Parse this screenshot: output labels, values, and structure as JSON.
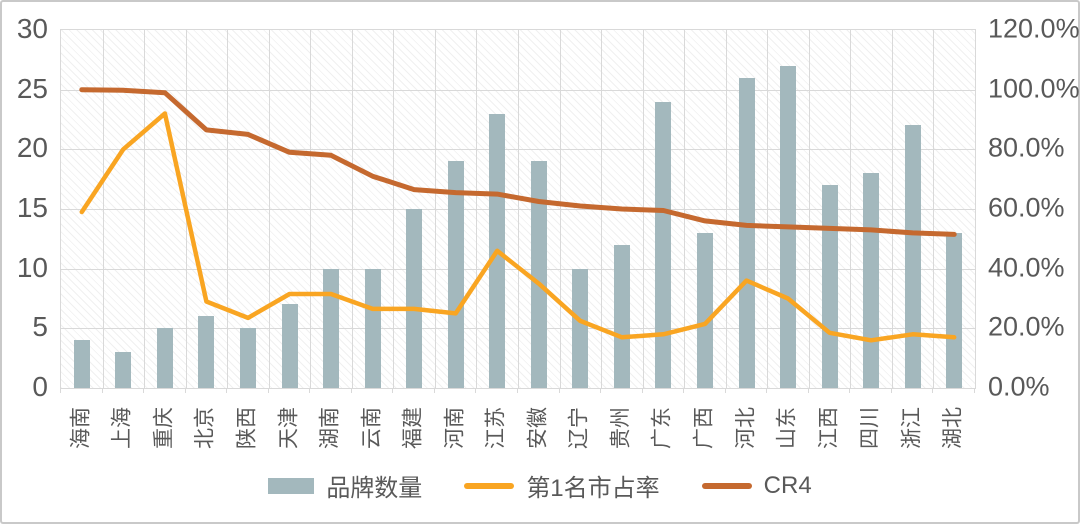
{
  "chart_data": {
    "type": "bar",
    "subtype": "combo-bar-line-dual-axis",
    "categories": [
      "海南",
      "上海",
      "重庆",
      "北京",
      "陕西",
      "天津",
      "湖南",
      "云南",
      "福建",
      "河南",
      "江苏",
      "安徽",
      "辽宁",
      "贵州",
      "广东",
      "广西",
      "河北",
      "山东",
      "江西",
      "四川",
      "浙江",
      "湖北"
    ],
    "series": [
      {
        "name": "品牌数量",
        "type": "bar",
        "axis": "left",
        "values": [
          4,
          3,
          5,
          6,
          5,
          7,
          10,
          10,
          15,
          19,
          23,
          19,
          10,
          12,
          24,
          13,
          26,
          27,
          17,
          18,
          22,
          13
        ]
      },
      {
        "name": "第1名市占率",
        "type": "line",
        "axis": "right",
        "values_pct": [
          59,
          80,
          92,
          29,
          23.5,
          31.5,
          31.5,
          26.5,
          26.5,
          25,
          46,
          35,
          22.5,
          17,
          18,
          21.5,
          36,
          30,
          18.5,
          16,
          18,
          17
        ]
      },
      {
        "name": "CR4",
        "type": "line",
        "axis": "right",
        "values_pct": [
          100,
          99.8,
          99,
          86.5,
          85,
          79,
          78,
          71,
          66.5,
          65.5,
          65,
          62.5,
          61,
          60,
          59.5,
          56,
          54.5,
          54,
          53.5,
          53,
          52,
          51.5
        ]
      }
    ],
    "left_axis": {
      "min": 0,
      "max": 30,
      "step": 5,
      "tick_labels": [
        "30",
        "25",
        "20",
        "15",
        "10",
        "5",
        "0"
      ]
    },
    "right_axis": {
      "min": 0,
      "max": 120,
      "step": 20,
      "tick_labels": [
        "120.0%",
        "100.0%",
        "80.0%",
        "60.0%",
        "40.0%",
        "20.0%",
        "0.0%"
      ]
    },
    "title": "",
    "xlabel": "",
    "ylabel": "",
    "grid": true,
    "legend_position": "bottom",
    "plot_background": "diagonal-hatch",
    "legend": [
      {
        "label": "品牌数量",
        "swatch": "bar",
        "color": "#a3b8bd"
      },
      {
        "label": "第1名市占率",
        "swatch": "line",
        "color": "#f9a522"
      },
      {
        "label": "CR4",
        "swatch": "line",
        "color": "#c5692f"
      }
    ]
  },
  "colors": {
    "bar": "#a3b8bd",
    "line_share": "#f9a522",
    "line_cr4": "#c5692f",
    "gridline": "#d9d9d9",
    "axis_text": "#595959",
    "canvas_border": "#c9c9c9"
  }
}
